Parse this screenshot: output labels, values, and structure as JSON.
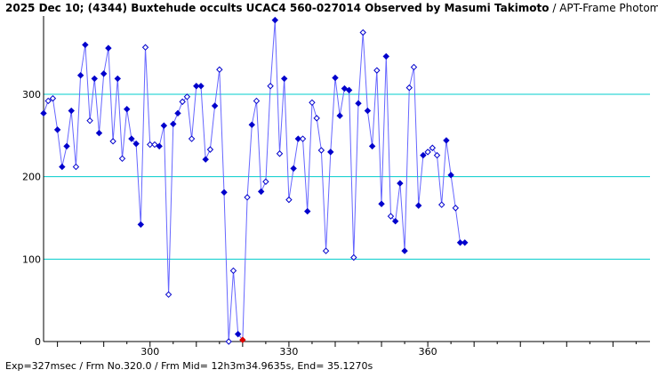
{
  "header": {
    "title": "2025 Dec 10; (4344) Buxtehude occults UCAC4 560-027014 Observed by Masumi Takimoto",
    "subtitle": "/ APT-Frame Photometry /"
  },
  "footer": {
    "text": "Exp=327msec / Frm No.320.0 / Frm Mid= 12h3m34.9635s,  End= 35.1270s"
  },
  "colors": {
    "line": "#6666ff",
    "point": "#0000cc",
    "highlight": "#dd0000",
    "grid": "#00cccc",
    "axis": "#000000"
  },
  "chart_data": {
    "type": "line",
    "xlim": [
      277,
      408
    ],
    "ylim": [
      0,
      395
    ],
    "x_ticks": [
      300,
      330,
      360
    ],
    "y_ticks": [
      0,
      100,
      200,
      300
    ],
    "gridlines_y": [
      100,
      200,
      300
    ],
    "highlight_x": 320,
    "x": [
      277,
      278,
      279,
      280,
      281,
      282,
      283,
      284,
      285,
      286,
      287,
      288,
      289,
      290,
      291,
      292,
      293,
      294,
      295,
      296,
      297,
      298,
      299,
      300,
      301,
      302,
      303,
      304,
      305,
      306,
      307,
      308,
      309,
      310,
      311,
      312,
      313,
      314,
      315,
      316,
      317,
      318,
      319,
      320,
      321,
      322,
      323,
      324,
      325,
      326,
      327,
      328,
      329,
      330,
      331,
      332,
      333,
      334,
      335,
      336,
      337,
      338,
      339,
      340,
      341,
      342,
      343,
      344,
      345,
      346,
      347,
      348,
      349,
      350,
      351,
      352,
      353,
      354,
      355,
      356,
      357,
      358,
      359,
      360,
      361,
      362,
      363,
      364,
      365,
      366,
      367,
      368
    ],
    "values": [
      277,
      292,
      295,
      257,
      212,
      237,
      280,
      212,
      323,
      360,
      268,
      319,
      253,
      325,
      356,
      243,
      319,
      222,
      282,
      246,
      240,
      142,
      357,
      239,
      239,
      237,
      262,
      57,
      264,
      277,
      291,
      297,
      246,
      310,
      310,
      221,
      233,
      286,
      330,
      181,
      0,
      86,
      9,
      2,
      175,
      263,
      292,
      182,
      194,
      310,
      390,
      228,
      319,
      172,
      210,
      246,
      246,
      158,
      290,
      271,
      232,
      110,
      230,
      320,
      274,
      307,
      305,
      102,
      289,
      375,
      280,
      237,
      329,
      167,
      346,
      152,
      146,
      192,
      110,
      308,
      333,
      165,
      226,
      230,
      235,
      226,
      166,
      244,
      202,
      162,
      120,
      120
    ],
    "open_markers": [
      278,
      279,
      284,
      287,
      292,
      294,
      299,
      300,
      301,
      304,
      307,
      308,
      309,
      313,
      315,
      317,
      318,
      320,
      321,
      323,
      325,
      326,
      328,
      330,
      333,
      335,
      336,
      337,
      338,
      344,
      346,
      349,
      352,
      356,
      357,
      360,
      361,
      362,
      363,
      366
    ]
  }
}
